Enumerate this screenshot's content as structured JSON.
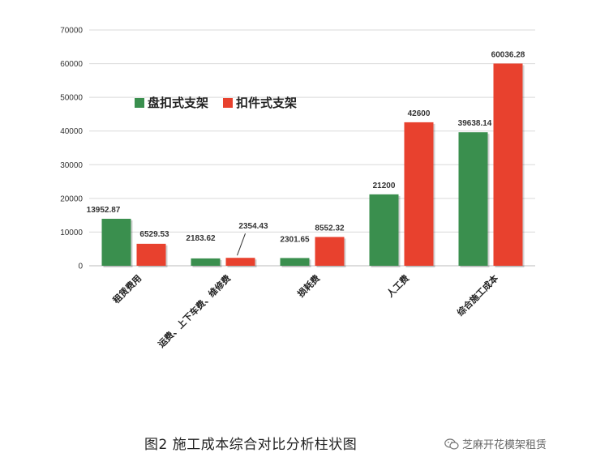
{
  "chart_data": {
    "type": "bar",
    "title": "",
    "xlabel": "",
    "ylabel": "",
    "ylim": [
      0,
      70000
    ],
    "yticks": [
      0,
      10000,
      20000,
      30000,
      40000,
      50000,
      60000,
      70000
    ],
    "grid": true,
    "legend_position": "upper-left",
    "categories": [
      "租赁费用",
      "运费、上下车费、维修费",
      "损耗费",
      "人工费",
      "综合施工成本"
    ],
    "series": [
      {
        "name": "盘扣式支架",
        "color": "#3a8f4e",
        "values": [
          13952.87,
          2183.62,
          2301.65,
          21200,
          39638.14
        ]
      },
      {
        "name": "扣件式支架",
        "color": "#e8412e",
        "values": [
          6529.53,
          2354.43,
          8552.32,
          42600,
          60036.28
        ]
      }
    ],
    "data_labels": [
      [
        "13952.87",
        "2183.62",
        "2301.65",
        "21200",
        "39638.14"
      ],
      [
        "6529.53",
        "2354.43",
        "8552.32",
        "42600",
        "60036.28"
      ]
    ]
  },
  "caption": "图2  施工成本综合对比分析柱状图",
  "watermark": {
    "icon": "wechat-icon",
    "text": "芝麻开花模架租赁"
  }
}
